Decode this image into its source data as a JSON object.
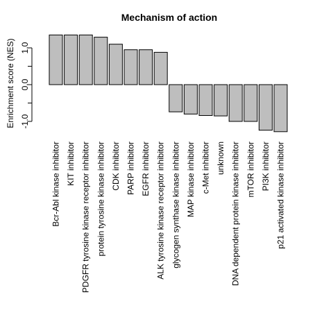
{
  "chart_data": {
    "type": "bar",
    "title": "Mechanism of action",
    "xlabel": "",
    "ylabel": "Enrichment score  (NES)",
    "ylim": [
      -1.2,
      1.3
    ],
    "yticks": [
      -1.0,
      0.0,
      1.0
    ],
    "ytick_labels": [
      "-1.0",
      "0.0",
      "1.0"
    ],
    "bar_color": "#bebebe",
    "grid": false,
    "legend": "none",
    "categories": [
      "Bcr-Abl kinase inhibitor",
      "KIT inhibitor",
      "PDGFR tyrosine kinase receptor inhibitor",
      "protein tyrosine kinase inhibitor",
      "CDK inhibitor",
      "PARP inhibitor",
      "EGFR inhibitor",
      "ALK tyrosine kinase receptor inhibitor",
      "glycogen synthase kinase inhibitor",
      "MAP kinase inhibitor",
      "c-Met inhibitor",
      "unknown",
      "DNA dependent protein kinase inhibitor",
      "mTOR inhibitor",
      "PI3K inhibitor",
      "p21 activated kinase inhibitor"
    ],
    "values": [
      1.35,
      1.35,
      1.35,
      1.29,
      1.1,
      0.95,
      0.95,
      0.88,
      -0.74,
      -0.8,
      -0.84,
      -0.85,
      -1.0,
      -1.0,
      -1.24,
      -1.28
    ]
  }
}
